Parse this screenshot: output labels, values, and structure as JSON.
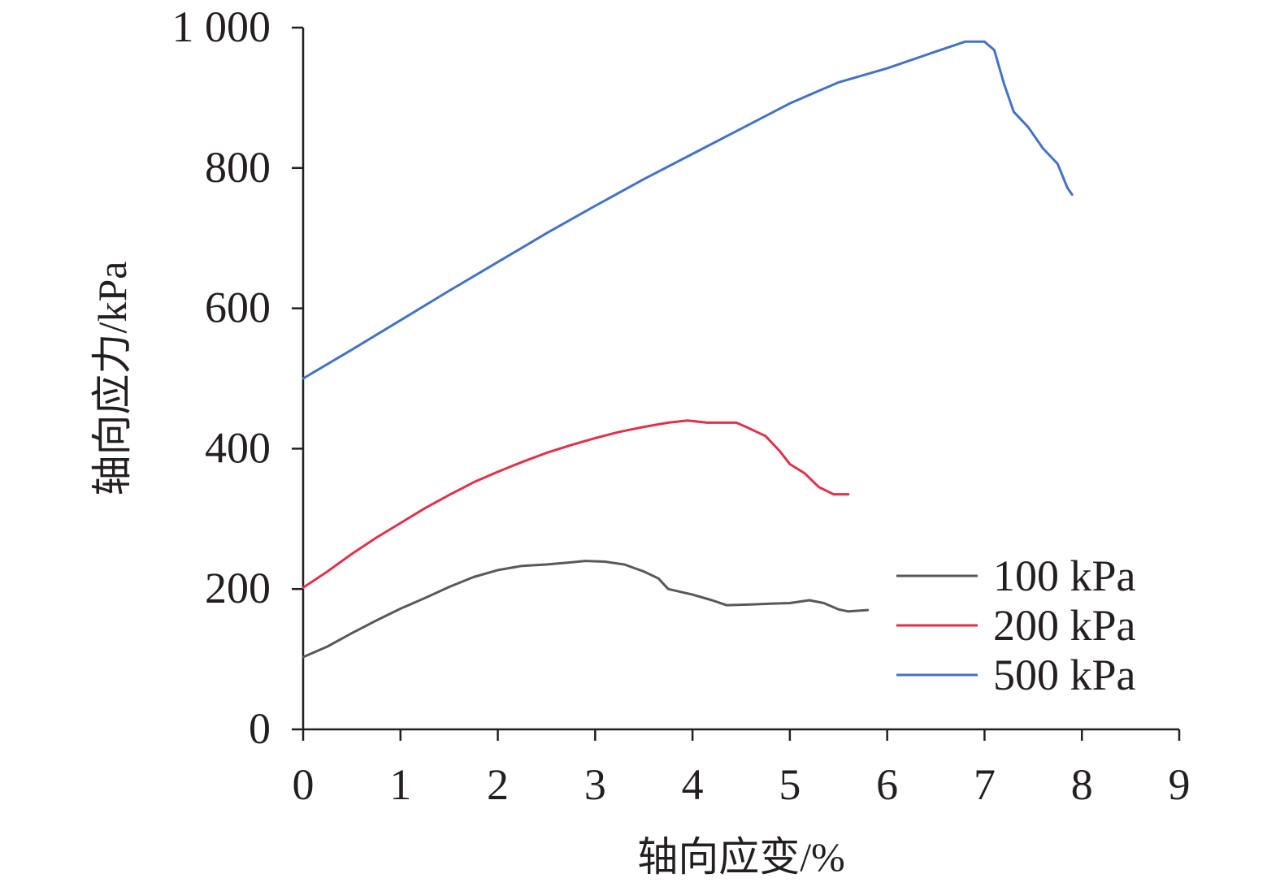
{
  "chart_data": {
    "type": "line",
    "title": "",
    "xlabel": "轴向应变/%",
    "ylabel": "轴向应力/kPa",
    "xlim": [
      0,
      9
    ],
    "ylim": [
      0,
      1000
    ],
    "xticks": [
      0,
      1,
      2,
      3,
      4,
      5,
      6,
      7,
      8,
      9
    ],
    "yticks": [
      0,
      200,
      400,
      600,
      800,
      1000
    ],
    "xtick_labels": [
      "0",
      "1",
      "2",
      "3",
      "4",
      "5",
      "6",
      "7",
      "8",
      "9"
    ],
    "ytick_labels": [
      "0",
      "200",
      "400",
      "600",
      "800",
      "1 000"
    ],
    "grid": false,
    "legend_position": "bottom-right",
    "series": [
      {
        "name": "100 kPa",
        "color": "#595959",
        "points": [
          [
            0,
            103
          ],
          [
            0.25,
            118
          ],
          [
            0.5,
            137
          ],
          [
            0.75,
            155
          ],
          [
            1.0,
            172
          ],
          [
            1.25,
            187
          ],
          [
            1.5,
            203
          ],
          [
            1.75,
            217
          ],
          [
            2.0,
            227
          ],
          [
            2.25,
            233
          ],
          [
            2.5,
            235
          ],
          [
            2.75,
            238
          ],
          [
            2.9,
            240
          ],
          [
            3.1,
            239
          ],
          [
            3.3,
            235
          ],
          [
            3.5,
            225
          ],
          [
            3.65,
            215
          ],
          [
            3.75,
            200
          ],
          [
            4.0,
            192
          ],
          [
            4.2,
            184
          ],
          [
            4.35,
            177
          ],
          [
            4.6,
            178
          ],
          [
            4.8,
            179
          ],
          [
            5.0,
            180
          ],
          [
            5.2,
            184
          ],
          [
            5.35,
            180
          ],
          [
            5.5,
            171
          ],
          [
            5.6,
            168
          ],
          [
            5.8,
            170
          ]
        ]
      },
      {
        "name": "200 kPa",
        "color": "#e0314b",
        "points": [
          [
            0,
            202
          ],
          [
            0.25,
            225
          ],
          [
            0.5,
            250
          ],
          [
            0.75,
            273
          ],
          [
            1.0,
            294
          ],
          [
            1.25,
            315
          ],
          [
            1.5,
            334
          ],
          [
            1.75,
            352
          ],
          [
            2.0,
            367
          ],
          [
            2.25,
            381
          ],
          [
            2.5,
            394
          ],
          [
            2.75,
            405
          ],
          [
            3.0,
            415
          ],
          [
            3.25,
            424
          ],
          [
            3.5,
            431
          ],
          [
            3.75,
            437
          ],
          [
            3.95,
            440
          ],
          [
            4.15,
            437
          ],
          [
            4.45,
            437
          ],
          [
            4.55,
            431
          ],
          [
            4.75,
            418
          ],
          [
            4.9,
            396
          ],
          [
            5.0,
            378
          ],
          [
            5.15,
            365
          ],
          [
            5.3,
            345
          ],
          [
            5.45,
            335
          ],
          [
            5.6,
            335
          ]
        ]
      },
      {
        "name": "500 kPa",
        "color": "#4472c4",
        "points": [
          [
            0,
            500
          ],
          [
            0.5,
            541
          ],
          [
            1.0,
            583
          ],
          [
            1.5,
            625
          ],
          [
            2.0,
            666
          ],
          [
            2.5,
            707
          ],
          [
            3.0,
            746
          ],
          [
            3.5,
            784
          ],
          [
            4.0,
            820
          ],
          [
            4.5,
            856
          ],
          [
            5.0,
            892
          ],
          [
            5.5,
            922
          ],
          [
            6.0,
            942
          ],
          [
            6.5,
            966
          ],
          [
            6.8,
            980
          ],
          [
            7.0,
            980
          ],
          [
            7.1,
            968
          ],
          [
            7.2,
            920
          ],
          [
            7.3,
            880
          ],
          [
            7.45,
            858
          ],
          [
            7.6,
            828
          ],
          [
            7.75,
            806
          ],
          [
            7.85,
            772
          ],
          [
            7.9,
            762
          ]
        ]
      }
    ]
  }
}
